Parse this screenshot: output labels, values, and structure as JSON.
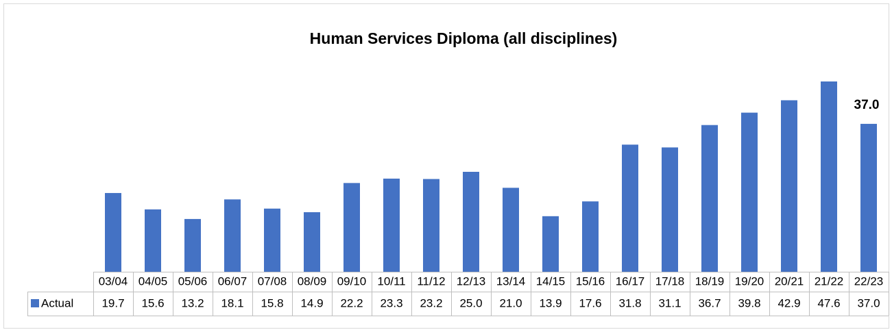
{
  "chart_data": {
    "type": "bar",
    "title": "Human Services Diploma (all disciplines)",
    "categories": [
      "03/04",
      "04/05",
      "05/06",
      "06/07",
      "07/08",
      "08/09",
      "09/10",
      "10/11",
      "11/12",
      "12/13",
      "13/14",
      "14/15",
      "15/16",
      "16/17",
      "17/18",
      "18/19",
      "19/20",
      "20/21",
      "21/22",
      "22/23"
    ],
    "series": [
      {
        "name": "Actual",
        "color": "#4472c4",
        "values": [
          19.7,
          15.6,
          13.2,
          18.1,
          15.8,
          14.9,
          22.2,
          23.3,
          23.2,
          25,
          21,
          13.9,
          17.6,
          31.8,
          31.1,
          36.7,
          39.8,
          42.9,
          47.6,
          37
        ],
        "value_labels": [
          "19.7",
          "15.6",
          "13.2",
          "18.1",
          "15.8",
          "14.9",
          "22.2",
          "23.3",
          "23.2",
          "25.0",
          "21.0",
          "13.9",
          "17.6",
          "31.8",
          "31.1",
          "36.7",
          "39.8",
          "42.9",
          "47.6",
          "37.0"
        ]
      }
    ],
    "ylim": [
      0,
      50
    ],
    "data_table": true
  }
}
